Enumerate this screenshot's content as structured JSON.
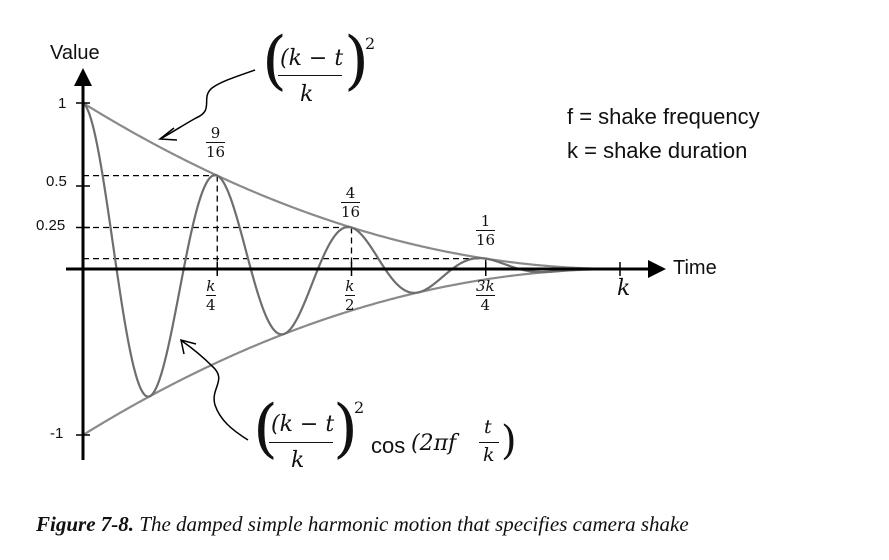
{
  "chart_data": {
    "type": "line",
    "title": "",
    "xlabel": "Time",
    "ylabel": "Value",
    "series": [
      {
        "name": "damped oscillation",
        "expr": "((k - t)/k)^2 cos(2πf t/k)",
        "shake_cycles": 4
      },
      {
        "name": "upper envelope",
        "expr": "((k - t)/k)^2"
      },
      {
        "name": "lower envelope",
        "expr": "-((k - t)/k)^2"
      }
    ],
    "x_ticks": [
      {
        "t": 0.25,
        "num": "k",
        "den": "4"
      },
      {
        "t": 0.5,
        "num": "k",
        "den": "2"
      },
      {
        "t": 0.75,
        "num": "3k",
        "den": "4"
      },
      {
        "t": 1.0,
        "label": "k"
      }
    ],
    "y_ticks": [
      {
        "v": 1,
        "label": "1"
      },
      {
        "v": 0.5,
        "label": "0.5"
      },
      {
        "v": 0.25,
        "label": "0.25"
      },
      {
        "v": -1,
        "label": "-1"
      }
    ],
    "peaks": [
      {
        "t": 0.25,
        "num": "9",
        "den": "16"
      },
      {
        "t": 0.5,
        "num": "4",
        "den": "16"
      },
      {
        "t": 0.75,
        "num": "1",
        "den": "16"
      }
    ],
    "legend": [
      "f = shake frequency",
      "k = shake duration"
    ],
    "annotations": {
      "upper": {
        "base": "(k − t",
        "over": "k",
        "close": ")",
        "exp": "2"
      },
      "lower": {
        "base": "(k − t",
        "over": "k",
        "close": ")",
        "exp": "2",
        "cos": "cos",
        "arg_pre": "(2πf",
        "arg_num": "t",
        "arg_den": "k",
        "arg_close": ")"
      }
    },
    "xlim": [
      0,
      1.0
    ],
    "ylim": [
      -1.0,
      1.0
    ]
  },
  "caption": {
    "label": "Figure 7-8.",
    "text": "The damped simple harmonic motion that specifies camera shake"
  }
}
